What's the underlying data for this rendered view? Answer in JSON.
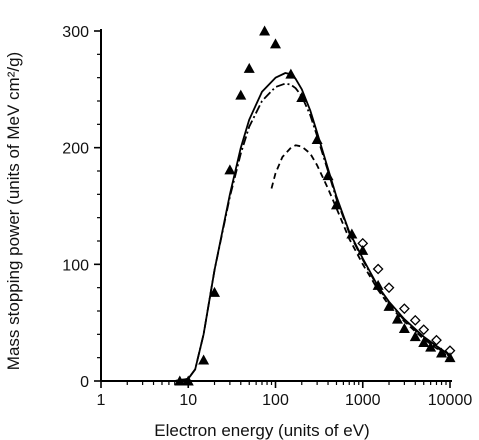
{
  "chart_data": {
    "type": "scatter",
    "title": "",
    "xlabel": "Electron energy (units of eV)",
    "ylabel": "Mass stopping power (units of MeV cm²/g)",
    "x_scale": "log",
    "xlim": [
      1,
      10000
    ],
    "ylim": [
      0,
      300
    ],
    "grid": false,
    "x_ticks": [
      {
        "value": 1,
        "label": "1"
      },
      {
        "value": 10,
        "label": "10"
      },
      {
        "value": 100,
        "label": "100"
      },
      {
        "value": 1000,
        "label": "1000"
      },
      {
        "value": 10000,
        "label": "10000"
      }
    ],
    "y_ticks": [
      {
        "value": 0,
        "label": "0"
      },
      {
        "value": 100,
        "label": "100"
      },
      {
        "value": 200,
        "label": "200"
      },
      {
        "value": 300,
        "label": "300"
      }
    ],
    "series": [
      {
        "style": "solid-line",
        "color": "#000000",
        "x": [
          7,
          10,
          12,
          15,
          20,
          30,
          40,
          50,
          70,
          100,
          130,
          150,
          170,
          200,
          250,
          300,
          400,
          500,
          700,
          1000,
          1500,
          2000,
          3000,
          5000,
          7000,
          10000
        ],
        "y": [
          0,
          2,
          10,
          40,
          95,
          160,
          200,
          224,
          248,
          260,
          264,
          263,
          259,
          250,
          232,
          213,
          182,
          158,
          128,
          105,
          81,
          68,
          53,
          38,
          30,
          22
        ]
      },
      {
        "style": "dash-dot-line",
        "color": "#000000",
        "x": [
          7,
          10,
          12,
          15,
          20,
          30,
          40,
          50,
          70,
          100,
          130,
          150,
          170,
          200,
          250,
          300,
          400,
          500,
          700,
          1000,
          1500,
          2000,
          3000,
          5000,
          7000,
          10000
        ],
        "y": [
          0,
          2,
          10,
          40,
          95,
          158,
          195,
          218,
          240,
          252,
          255,
          254,
          251,
          244,
          228,
          210,
          180,
          156,
          127,
          104,
          80,
          67,
          52,
          37,
          29,
          21
        ]
      },
      {
        "style": "dashed-line",
        "color": "#000000",
        "x": [
          90,
          100,
          120,
          150,
          170,
          200,
          250,
          300,
          400,
          500,
          700,
          1000,
          1500,
          2000,
          3000,
          5000,
          7000,
          10000
        ],
        "y": [
          165,
          178,
          192,
          200,
          202,
          201,
          195,
          185,
          165,
          148,
          122,
          100,
          78,
          65,
          51,
          36,
          28,
          20
        ]
      },
      {
        "style": "open-diamond",
        "color": "#000000",
        "x": [
          1000,
          1500,
          2000,
          3000,
          4000,
          5000,
          7000,
          10000
        ],
        "y": [
          118,
          96,
          80,
          62,
          52,
          44,
          35,
          26
        ]
      },
      {
        "style": "filled-triangle",
        "color": "#000000",
        "x": [
          8,
          10,
          15,
          20,
          30,
          40,
          50,
          75,
          100,
          150,
          200,
          300,
          400,
          500,
          750,
          1000,
          1500,
          2000,
          2500,
          3000,
          4000,
          5000,
          6000,
          8000,
          10000
        ],
        "y": [
          0,
          0,
          18,
          76,
          181,
          245,
          268,
          300,
          289,
          263,
          243,
          207,
          176,
          151,
          126,
          112,
          82,
          64,
          53,
          45,
          38,
          33,
          29,
          24,
          20
        ]
      }
    ]
  }
}
